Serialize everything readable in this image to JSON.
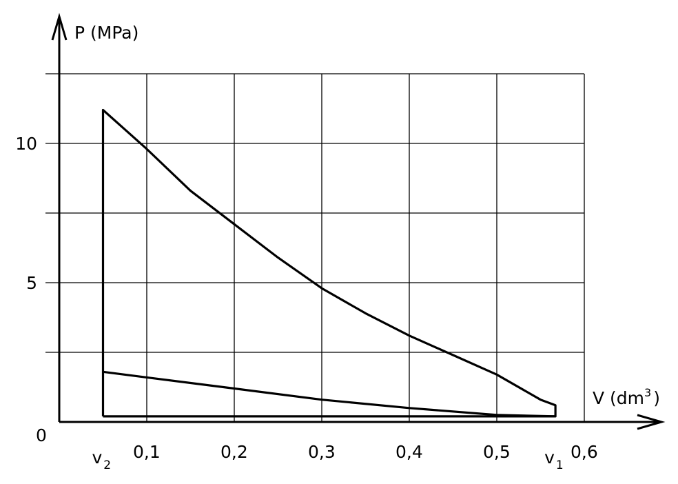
{
  "chart_data": {
    "type": "line",
    "title": "",
    "xlabel": {
      "base": "V (dm",
      "sup": "3",
      "close": ")"
    },
    "ylabel": "P (MPa)",
    "origin_label": "0",
    "xlim": [
      -0.0,
      0.6
    ],
    "ylim": [
      0,
      12.5
    ],
    "grid": true,
    "x_ticks": [
      {
        "value": 0.1,
        "label": "0,1"
      },
      {
        "value": 0.2,
        "label": "0,2"
      },
      {
        "value": 0.3,
        "label": "0,3"
      },
      {
        "value": 0.4,
        "label": "0,4"
      },
      {
        "value": 0.5,
        "label": "0,5"
      },
      {
        "value": 0.6,
        "label": "0,6"
      }
    ],
    "y_ticks": [
      {
        "value": 5,
        "label": "5"
      },
      {
        "value": 10,
        "label": "10"
      }
    ],
    "x_grid": [
      0.1,
      0.2,
      0.3,
      0.4,
      0.5,
      0.6
    ],
    "y_grid": [
      2.5,
      5,
      7.5,
      10,
      12.5
    ],
    "markers": [
      {
        "value": 0.05,
        "base": "v",
        "sub": "2"
      },
      {
        "value": 0.567,
        "base": "v",
        "sub": "1"
      }
    ],
    "series": [
      {
        "points": [
          [
            0.05,
            0.2
          ],
          [
            0.05,
            11.2
          ],
          [
            0.075,
            10.5
          ],
          [
            0.1,
            9.8
          ],
          [
            0.15,
            8.3
          ],
          [
            0.2,
            7.1
          ],
          [
            0.25,
            5.9
          ],
          [
            0.3,
            4.8
          ],
          [
            0.35,
            3.9
          ],
          [
            0.4,
            3.1
          ],
          [
            0.45,
            2.4
          ],
          [
            0.5,
            1.7
          ],
          [
            0.55,
            0.8
          ],
          [
            0.567,
            0.6
          ],
          [
            0.567,
            0.2
          ],
          [
            0.5,
            0.25
          ],
          [
            0.4,
            0.5
          ],
          [
            0.3,
            0.8
          ],
          [
            0.2,
            1.2
          ],
          [
            0.1,
            1.6
          ],
          [
            0.05,
            1.8
          ]
        ]
      },
      {
        "points": [
          [
            0.05,
            0.2
          ],
          [
            0.567,
            0.2
          ]
        ]
      }
    ]
  }
}
